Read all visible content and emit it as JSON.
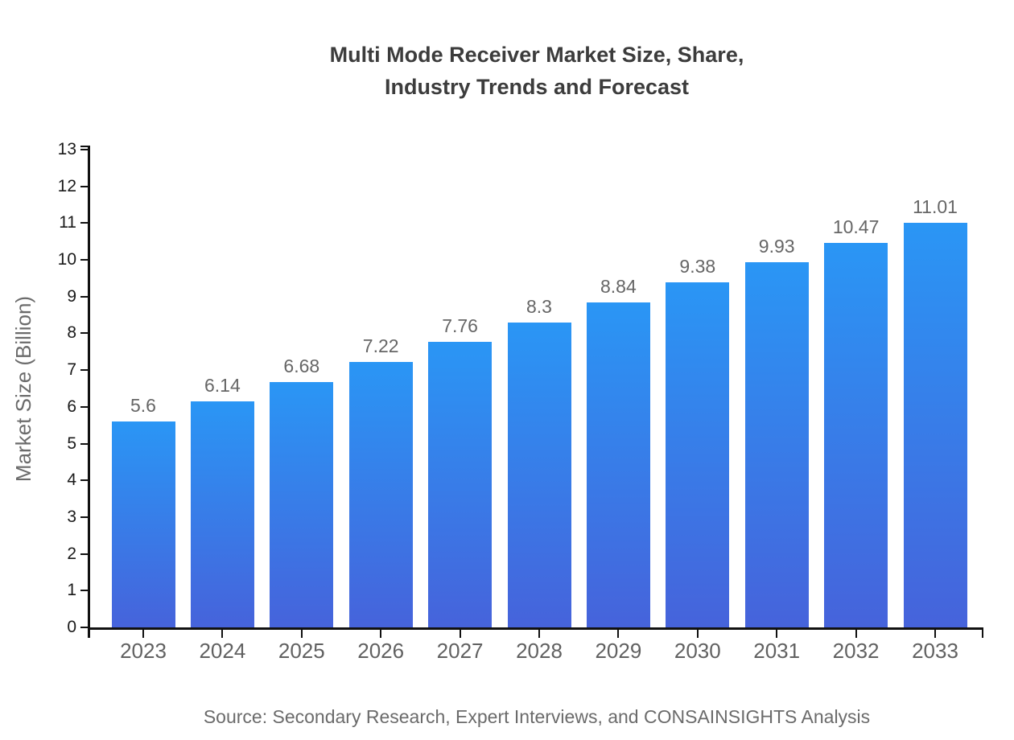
{
  "title": {
    "line1": "Multi Mode Receiver Market Size, Share,",
    "line2": "Industry Trends and Forecast"
  },
  "y_axis": {
    "label": "Market Size (Billion)"
  },
  "source": "Source: Secondary Research, Expert Interviews, and CONSAINSIGHTS Analysis",
  "chart_data": {
    "type": "bar",
    "title": "Multi Mode Receiver Market Size, Share, Industry Trends and Forecast",
    "categories": [
      "2023",
      "2024",
      "2025",
      "2026",
      "2027",
      "2028",
      "2029",
      "2030",
      "2031",
      "2032",
      "2033"
    ],
    "values": [
      5.6,
      6.14,
      6.68,
      7.22,
      7.76,
      8.3,
      8.84,
      9.38,
      9.93,
      10.47,
      11.01
    ],
    "value_labels": [
      "5.6",
      "6.14",
      "6.68",
      "7.22",
      "7.76",
      "8.3",
      "8.84",
      "9.38",
      "9.93",
      "10.47",
      "11.01"
    ],
    "xlabel": "",
    "ylabel": "Market Size (Billion)",
    "ylim": [
      0,
      13
    ],
    "ytick_step": 1,
    "yticks": [
      0,
      1,
      2,
      3,
      4,
      5,
      6,
      7,
      8,
      9,
      10,
      11,
      12,
      13
    ],
    "grid": false,
    "legend": null,
    "colors": {
      "bar_gradient_top": "#2A96F5",
      "bar_gradient_bottom": "#4663DB",
      "title_text": "#3c3c3c",
      "value_label_text": "#666666",
      "x_tick_text": "#616161",
      "y_tick_text": "#1a1a1a",
      "axis_label_text": "#6b6b6b",
      "source_text": "#6b6b6b",
      "axis_line": "#111111"
    }
  }
}
